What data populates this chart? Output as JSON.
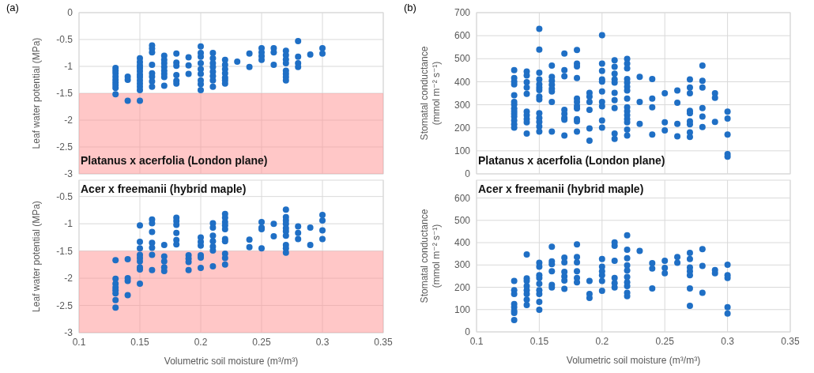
{
  "chart_data": [
    {
      "type": "scatter",
      "ylabel": "Leaf water potential (MPa)",
      "annotations": [
        "(a)",
        "Platanus x acerfolia (London plane)"
      ],
      "xlim": [
        0.1,
        0.35
      ],
      "xticks": [
        0.1,
        0.15,
        0.2,
        0.25,
        0.3,
        0.35
      ],
      "ylim": [
        -3,
        0
      ],
      "yticks": [
        0,
        -0.5,
        -1,
        -1.5,
        -2,
        -2.5,
        -3
      ],
      "grid": true,
      "tick_labels": "y",
      "marker": "circle",
      "bands": [
        {
          "axis": "y",
          "from": -3,
          "to": -1.5,
          "color": "#ff8f8f"
        }
      ],
      "series": [
        {
          "color": "#1f6fc5",
          "x": [
            0.13,
            0.13,
            0.13,
            0.13,
            0.13,
            0.13,
            0.13,
            0.13,
            0.13,
            0.14,
            0.14,
            0.14,
            0.15,
            0.15,
            0.15,
            0.15,
            0.15,
            0.15,
            0.15,
            0.15,
            0.15,
            0.15,
            0.15,
            0.15,
            0.16,
            0.16,
            0.16,
            0.16,
            0.16,
            0.16,
            0.16,
            0.16,
            0.17,
            0.17,
            0.17,
            0.17,
            0.17,
            0.17,
            0.17,
            0.17,
            0.18,
            0.18,
            0.18,
            0.18,
            0.18,
            0.18,
            0.19,
            0.19,
            0.19,
            0.2,
            0.2,
            0.2,
            0.2,
            0.2,
            0.2,
            0.2,
            0.2,
            0.2,
            0.21,
            0.21,
            0.21,
            0.21,
            0.21,
            0.21,
            0.21,
            0.21,
            0.22,
            0.22,
            0.22,
            0.22,
            0.22,
            0.22,
            0.22,
            0.23,
            0.24,
            0.24,
            0.25,
            0.25,
            0.25,
            0.25,
            0.26,
            0.26,
            0.26,
            0.27,
            0.27,
            0.27,
            0.27,
            0.27,
            0.27,
            0.27,
            0.27,
            0.28,
            0.28,
            0.28,
            0.28,
            0.29,
            0.3,
            0.3
          ],
          "values": [
            -1.03,
            -1.08,
            -1.13,
            -1.19,
            -1.25,
            -1.3,
            -1.35,
            -1.4,
            -1.52,
            -1.19,
            -1.25,
            -1.64,
            -0.85,
            -0.92,
            -0.98,
            -1.03,
            -1.09,
            -1.15,
            -1.2,
            -1.26,
            -1.32,
            -1.38,
            -1.44,
            -1.64,
            -0.61,
            -0.67,
            -0.74,
            -0.97,
            -1.13,
            -1.19,
            -1.28,
            -1.38,
            -0.8,
            -0.88,
            -0.94,
            -1.01,
            -1.08,
            -1.14,
            -1.2,
            -1.36,
            -0.76,
            -0.93,
            -0.99,
            -1.16,
            -1.27,
            -1.32,
            -0.83,
            -0.98,
            -1.14,
            -0.63,
            -0.75,
            -0.82,
            -0.94,
            -1.05,
            -1.14,
            -1.26,
            -1.33,
            -1.44,
            -0.75,
            -0.85,
            -0.94,
            -1.01,
            -1.1,
            -1.18,
            -1.26,
            -1.38,
            -0.88,
            -0.97,
            -1.05,
            -1.13,
            -1.21,
            -1.26,
            -1.32,
            -0.91,
            -0.76,
            -1.01,
            -0.66,
            -0.74,
            -0.81,
            -0.88,
            -0.66,
            -0.74,
            -0.97,
            -0.71,
            -0.79,
            -0.87,
            -0.94,
            -1.08,
            -1.14,
            -1.2,
            -1.26,
            -0.53,
            -0.82,
            -0.94,
            -1.01,
            -0.78,
            -0.66,
            -0.76
          ]
        }
      ]
    },
    {
      "type": "scatter",
      "ylabel": "Stomatal conductance (mmol m⁻² s⁻¹)",
      "annotations": [
        "(b)",
        "Platanus x acerfolia (London plane)"
      ],
      "xlim": [
        0.1,
        0.35
      ],
      "xticks": [
        0.1,
        0.15,
        0.2,
        0.25,
        0.3,
        0.35
      ],
      "ylim": [
        0,
        700
      ],
      "yticks": [
        0,
        100,
        200,
        300,
        400,
        500,
        600,
        700
      ],
      "grid": true,
      "tick_labels": "y",
      "marker": "circle",
      "series": [
        {
          "color": "#1f6fc5",
          "x": [
            0.13,
            0.13,
            0.13,
            0.13,
            0.13,
            0.13,
            0.13,
            0.13,
            0.13,
            0.13,
            0.13,
            0.13,
            0.13,
            0.13,
            0.14,
            0.14,
            0.14,
            0.14,
            0.14,
            0.14,
            0.14,
            0.14,
            0.14,
            0.14,
            0.15,
            0.15,
            0.15,
            0.15,
            0.15,
            0.15,
            0.15,
            0.15,
            0.15,
            0.15,
            0.15,
            0.15,
            0.15,
            0.15,
            0.16,
            0.16,
            0.16,
            0.16,
            0.16,
            0.16,
            0.16,
            0.16,
            0.17,
            0.17,
            0.17,
            0.17,
            0.17,
            0.17,
            0.17,
            0.17,
            0.18,
            0.18,
            0.18,
            0.18,
            0.18,
            0.18,
            0.18,
            0.18,
            0.18,
            0.18,
            0.18,
            0.19,
            0.19,
            0.19,
            0.19,
            0.19,
            0.19,
            0.2,
            0.2,
            0.2,
            0.2,
            0.2,
            0.2,
            0.2,
            0.2,
            0.2,
            0.2,
            0.21,
            0.21,
            0.21,
            0.21,
            0.21,
            0.21,
            0.21,
            0.21,
            0.21,
            0.21,
            0.22,
            0.22,
            0.22,
            0.22,
            0.22,
            0.22,
            0.22,
            0.22,
            0.22,
            0.22,
            0.22,
            0.22,
            0.22,
            0.22,
            0.22,
            0.23,
            0.23,
            0.23,
            0.24,
            0.24,
            0.24,
            0.24,
            0.25,
            0.25,
            0.25,
            0.26,
            0.26,
            0.26,
            0.26,
            0.27,
            0.27,
            0.27,
            0.27,
            0.27,
            0.27,
            0.27,
            0.27,
            0.27,
            0.28,
            0.28,
            0.28,
            0.28,
            0.28,
            0.28,
            0.29,
            0.29,
            0.29,
            0.3,
            0.3,
            0.3,
            0.3,
            0.3
          ],
          "values": [
            450,
            416,
            401,
            389,
            341,
            312,
            301,
            284,
            272,
            261,
            249,
            232,
            215,
            201,
            444,
            427,
            398,
            375,
            347,
            270,
            255,
            238,
            224,
            175,
            630,
            540,
            439,
            410,
            389,
            375,
            364,
            335,
            323,
            263,
            243,
            226,
            206,
            184,
            470,
            421,
            404,
            387,
            370,
            358,
            312,
            184,
            522,
            450,
            424,
            278,
            261,
            243,
            235,
            166,
            538,
            479,
            467,
            416,
            327,
            312,
            295,
            284,
            238,
            228,
            184,
            352,
            335,
            312,
            278,
            197,
            144,
            602,
            479,
            447,
            410,
            401,
            358,
            312,
            293,
            232,
            201,
            493,
            465,
            435,
            410,
            396,
            352,
            320,
            286,
            175,
            152,
            499,
            479,
            458,
            412,
            396,
            378,
            362,
            327,
            289,
            272,
            255,
            238,
            224,
            192,
            166,
            421,
            312,
            217,
            412,
            327,
            289,
            171,
            350,
            224,
            189,
            362,
            309,
            217,
            163,
            410,
            375,
            350,
            274,
            263,
            228,
            215,
            180,
            160,
            470,
            404,
            375,
            286,
            249,
            203,
            350,
            330,
            226,
            270,
            240,
            171,
            86,
            75
          ]
        }
      ]
    },
    {
      "type": "scatter",
      "xlabel": "Volumetric soil moisture (m³/m³)",
      "ylabel": "Leaf water potential (MPa)",
      "annotations": [
        "Acer x freemanii  (hybrid maple)"
      ],
      "xlim": [
        0.1,
        0.35
      ],
      "xticks": [
        0.1,
        0.15,
        0.2,
        0.25,
        0.3,
        0.35
      ],
      "ylim": [
        -3,
        -0.2
      ],
      "yticks": [
        -0.5,
        -1,
        -1.5,
        -2,
        -2.5,
        -3
      ],
      "grid": true,
      "marker": "circle",
      "bands": [
        {
          "axis": "y",
          "from": -3,
          "to": -1.5,
          "color": "#ff8f8f"
        }
      ],
      "series": [
        {
          "color": "#1f6fc5",
          "x": [
            0.13,
            0.13,
            0.13,
            0.13,
            0.13,
            0.13,
            0.13,
            0.13,
            0.14,
            0.14,
            0.14,
            0.14,
            0.15,
            0.15,
            0.15,
            0.15,
            0.15,
            0.15,
            0.15,
            0.15,
            0.15,
            0.16,
            0.16,
            0.16,
            0.16,
            0.16,
            0.16,
            0.16,
            0.17,
            0.17,
            0.17,
            0.17,
            0.17,
            0.18,
            0.18,
            0.18,
            0.18,
            0.18,
            0.18,
            0.19,
            0.19,
            0.19,
            0.19,
            0.2,
            0.2,
            0.2,
            0.2,
            0.2,
            0.2,
            0.21,
            0.21,
            0.21,
            0.21,
            0.21,
            0.21,
            0.21,
            0.22,
            0.22,
            0.22,
            0.22,
            0.22,
            0.22,
            0.22,
            0.22,
            0.22,
            0.22,
            0.24,
            0.24,
            0.25,
            0.25,
            0.25,
            0.25,
            0.26,
            0.26,
            0.27,
            0.27,
            0.27,
            0.27,
            0.27,
            0.27,
            0.27,
            0.27,
            0.27,
            0.27,
            0.28,
            0.28,
            0.28,
            0.29,
            0.29,
            0.3,
            0.3,
            0.3,
            0.3
          ],
          "values": [
            -1.67,
            -2.01,
            -2.1,
            -2.17,
            -2.22,
            -2.28,
            -2.4,
            -2.54,
            -1.65,
            -2,
            -2.05,
            -2.31,
            -1.03,
            -1.33,
            -1.45,
            -1.57,
            -1.63,
            -1.69,
            -1.8,
            -1.84,
            -2.1,
            -0.92,
            -0.99,
            -1.15,
            -1.35,
            -1.44,
            -1.57,
            -1.85,
            -1.39,
            -1.6,
            -1.69,
            -1.8,
            -1.87,
            -0.89,
            -0.95,
            -1.02,
            -1.17,
            -1.3,
            -1.38,
            -1.58,
            -1.64,
            -1.7,
            -1.85,
            -1.25,
            -1.33,
            -1.4,
            -1.58,
            -1.62,
            -1.81,
            -0.99,
            -1.07,
            -1.22,
            -1.32,
            -1.42,
            -1.49,
            -1.78,
            -0.82,
            -0.89,
            -0.97,
            -1.03,
            -1.1,
            -1.28,
            -1.32,
            -1.55,
            -1.63,
            -1.75,
            -1.29,
            -1.43,
            -0.97,
            -1.07,
            -1.1,
            -1.45,
            -1,
            -1.23,
            -0.74,
            -0.88,
            -0.94,
            -1,
            -1.08,
            -1.14,
            -1.22,
            -1.39,
            -1.45,
            -1.53,
            -1.05,
            -1.17,
            -1.28,
            -1.07,
            -1.39,
            -0.84,
            -0.94,
            -1.12,
            -1.28
          ]
        }
      ]
    },
    {
      "type": "scatter",
      "xlabel": "Volumetric soil moisture (m³/m³)",
      "ylabel": "Stomatal conductance (mmol m⁻² s⁻¹)",
      "annotations": [
        "Acer x freemanii  (hybrid maple)"
      ],
      "xlim": [
        0.1,
        0.35
      ],
      "xticks": [
        0.1,
        0.15,
        0.2,
        0.25,
        0.3,
        0.35
      ],
      "ylim": [
        0,
        680
      ],
      "yticks": [
        0,
        100,
        200,
        300,
        400,
        500,
        600
      ],
      "grid": true,
      "marker": "circle",
      "series": [
        {
          "color": "#1f6fc5",
          "x": [
            0.13,
            0.13,
            0.13,
            0.13,
            0.13,
            0.13,
            0.13,
            0.13,
            0.14,
            0.14,
            0.14,
            0.14,
            0.14,
            0.14,
            0.14,
            0.14,
            0.15,
            0.15,
            0.15,
            0.15,
            0.15,
            0.15,
            0.15,
            0.15,
            0.15,
            0.16,
            0.16,
            0.16,
            0.16,
            0.16,
            0.16,
            0.17,
            0.17,
            0.17,
            0.17,
            0.17,
            0.17,
            0.18,
            0.18,
            0.18,
            0.18,
            0.18,
            0.18,
            0.19,
            0.19,
            0.19,
            0.2,
            0.2,
            0.2,
            0.2,
            0.2,
            0.2,
            0.21,
            0.21,
            0.21,
            0.21,
            0.21,
            0.21,
            0.22,
            0.22,
            0.22,
            0.22,
            0.22,
            0.22,
            0.22,
            0.22,
            0.22,
            0.22,
            0.23,
            0.24,
            0.24,
            0.24,
            0.25,
            0.25,
            0.25,
            0.26,
            0.26,
            0.27,
            0.27,
            0.27,
            0.27,
            0.27,
            0.27,
            0.27,
            0.28,
            0.28,
            0.28,
            0.29,
            0.29,
            0.3,
            0.3,
            0.3,
            0.3,
            0.3
          ],
          "values": [
            228,
            187,
            170,
            125,
            111,
            94,
            85,
            53,
            347,
            240,
            228,
            205,
            187,
            170,
            144,
            120,
            310,
            292,
            254,
            242,
            216,
            187,
            170,
            135,
            99,
            382,
            316,
            304,
            272,
            211,
            199,
            333,
            312,
            269,
            249,
            230,
            193,
            392,
            336,
            312,
            272,
            242,
            222,
            228,
            170,
            152,
            327,
            292,
            272,
            254,
            228,
            184,
            401,
            386,
            319,
            242,
            219,
            199,
            433,
            368,
            330,
            298,
            275,
            246,
            222,
            205,
            175,
            160,
            363,
            308,
            284,
            195,
            319,
            287,
            263,
            336,
            310,
            354,
            327,
            289,
            272,
            254,
            195,
            117,
            371,
            296,
            175,
            277,
            263,
            301,
            254,
            242,
            111,
            82
          ]
        }
      ]
    }
  ]
}
